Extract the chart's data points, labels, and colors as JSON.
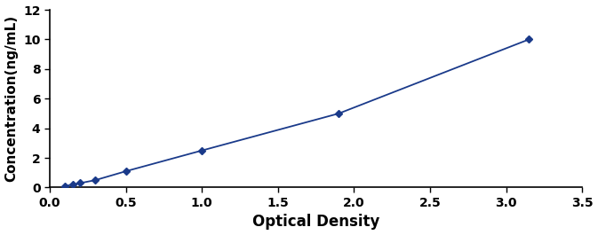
{
  "x": [
    0.1,
    0.15,
    0.2,
    0.3,
    0.5,
    1.0,
    1.9,
    3.15
  ],
  "y": [
    0.1,
    0.2,
    0.3,
    0.5,
    1.1,
    2.5,
    5.0,
    10.0
  ],
  "xlabel": "Optical Density",
  "ylabel": "Concentration(ng/mL)",
  "xlim": [
    0,
    3.5
  ],
  "ylim": [
    0,
    12
  ],
  "xticks": [
    0.0,
    0.5,
    1.0,
    1.5,
    2.0,
    2.5,
    3.0,
    3.5
  ],
  "yticks": [
    0,
    2,
    4,
    6,
    8,
    10,
    12
  ],
  "line_color": "#1a3a8a",
  "marker_color": "#1a3a8a",
  "marker": "D",
  "marker_size": 4,
  "line_width": 1.3,
  "xlabel_fontsize": 12,
  "ylabel_fontsize": 11,
  "tick_fontsize": 10,
  "background_color": "#ffffff",
  "text_color": "#000000",
  "spine_color": "#000000"
}
